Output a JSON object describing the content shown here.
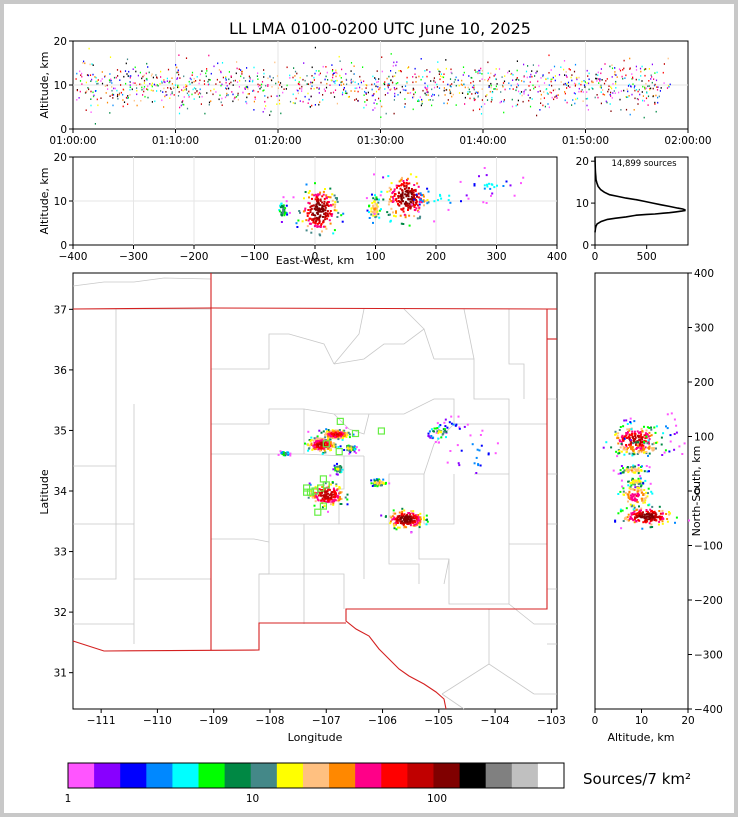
{
  "title": "LL LMA 0100-0200 UTC June 10, 2025",
  "colors": {
    "scale": [
      "#ff55ff",
      "#8800ff",
      "#0000ff",
      "#0088ff",
      "#00ffff",
      "#00ff00",
      "#008844",
      "#448888",
      "#ffff00",
      "#ffc080",
      "#ff8800",
      "#ff0088",
      "#ff0000",
      "#c00000",
      "#800000",
      "#000000",
      "#808080",
      "#c0c0c0",
      "#ffffff"
    ],
    "nldn": "#66ee44",
    "state_border": "#d42020",
    "county_border": "#c8c8c8"
  },
  "panels": {
    "time_height": {
      "ylabel": "Altitude, km",
      "yticks": [
        "0",
        "10",
        "20"
      ],
      "xticks": [
        "01:00:00",
        "01:10:00",
        "01:20:00",
        "01:30:00",
        "01:40:00",
        "01:50:00",
        "02:00:00"
      ]
    },
    "ew_height": {
      "ylabel": "Altitude, km",
      "xlabel": "East-West, km",
      "yticks": [
        "0",
        "10",
        "20"
      ],
      "xticks": [
        "−400",
        "−300",
        "−200",
        "−100",
        "0",
        "100",
        "200",
        "300",
        "400"
      ]
    },
    "histogram": {
      "sources_label": "14,899 sources",
      "yticks": [
        "0",
        "10",
        "20"
      ],
      "xticks": [
        "0",
        "500"
      ]
    },
    "plan": {
      "xlabel": "Longitude",
      "ylabel": "Latitude",
      "xticks": [
        "−111",
        "−110",
        "−109",
        "−108",
        "−107",
        "−106",
        "−105",
        "−104",
        "−103"
      ],
      "yticks": [
        "31",
        "32",
        "33",
        "34",
        "35",
        "36",
        "37"
      ]
    },
    "ns_height": {
      "ylabel": "North-South, km",
      "xlabel": "Altitude, km",
      "yticks": [
        "−400",
        "−300",
        "−200",
        "−100",
        "0",
        "100",
        "200",
        "300",
        "400"
      ],
      "xticks": [
        "0",
        "10",
        "20"
      ]
    }
  },
  "colorbar": {
    "label": "Sources/7 km²",
    "ticks": [
      "1",
      "10",
      "100"
    ]
  },
  "chart_data": [
    {
      "type": "scatter",
      "title": "LL LMA 0100-0200 UTC June 10, 2025",
      "xlabel": "",
      "ylabel": "Altitude, km",
      "xlim": [
        "01:00:00",
        "02:00:00"
      ],
      "ylim": [
        0,
        20
      ],
      "grid": true
    },
    {
      "type": "heatmap",
      "xlabel": "East-West, km",
      "ylabel": "Altitude, km",
      "xlim": [
        -400,
        400
      ],
      "ylim": [
        0,
        20
      ],
      "grid": true,
      "clusters": [
        {
          "x": -55,
          "z": 8,
          "sx": 4,
          "sz": 1.2,
          "peak": 15
        },
        {
          "x": 5,
          "z": 8,
          "sx": 14,
          "sz": 2.4,
          "peak": 220
        },
        {
          "x": 97,
          "z": 8.5,
          "sx": 5,
          "sz": 1.5,
          "peak": 40
        },
        {
          "x": 150,
          "z": 11,
          "sx": 16,
          "sz": 2.5,
          "peak": 200
        },
        {
          "x": 200,
          "z": 11,
          "sx": 30,
          "sz": 1.5,
          "peak": 6
        },
        {
          "x": 290,
          "z": 14,
          "sx": 22,
          "sz": 1.5,
          "peak": 5
        }
      ]
    },
    {
      "type": "line",
      "xlabel": "",
      "ylabel": "",
      "xlim": [
        0,
        900
      ],
      "ylim": [
        0,
        21
      ],
      "series": [
        {
          "x": [
            0,
            5,
            10,
            20,
            60,
            120,
            200,
            300,
            400,
            500,
            580,
            660,
            720,
            780,
            840,
            870,
            870,
            850,
            800,
            720,
            640,
            560,
            480,
            400,
            300,
            220,
            140,
            90,
            55,
            30,
            18,
            10,
            8,
            5,
            3,
            2,
            0
          ],
          "y": [
            3,
            4,
            4.5,
            5,
            5.6,
            6.1,
            6.4,
            6.7,
            7.1,
            7.3,
            7.4,
            7.6,
            7.7,
            7.9,
            8.1,
            8.2,
            8.4,
            8.6,
            8.8,
            9.2,
            9.6,
            10,
            10.4,
            10.8,
            11.2,
            11.6,
            12,
            12.6,
            13.2,
            14,
            14.8,
            15.6,
            16.4,
            17.2,
            18,
            19,
            21
          ]
        }
      ]
    },
    {
      "type": "heatmap",
      "xlabel": "Longitude",
      "ylabel": "Latitude",
      "xlim": [
        -111.5,
        -102.9
      ],
      "ylim": [
        30.4,
        37.6
      ],
      "clusters": [
        {
          "lon": -106.85,
          "lat": 34.95,
          "sx": 0.12,
          "sy": 0.04,
          "peak": 120
        },
        {
          "lon": -107.1,
          "lat": 34.78,
          "sx": 0.12,
          "sy": 0.06,
          "peak": 140
        },
        {
          "lon": -106.6,
          "lat": 34.72,
          "sx": 0.05,
          "sy": 0.03,
          "peak": 30
        },
        {
          "lon": -106.8,
          "lat": 34.38,
          "sx": 0.04,
          "sy": 0.04,
          "peak": 25
        },
        {
          "lon": -107.0,
          "lat": 33.95,
          "sx": 0.15,
          "sy": 0.09,
          "peak": 160
        },
        {
          "lon": -106.08,
          "lat": 34.15,
          "sx": 0.07,
          "sy": 0.03,
          "peak": 40
        },
        {
          "lon": -105.6,
          "lat": 33.55,
          "sx": 0.15,
          "sy": 0.07,
          "peak": 220
        },
        {
          "lon": -107.75,
          "lat": 34.63,
          "sx": 0.04,
          "sy": 0.02,
          "peak": 15
        },
        {
          "lon": -104.4,
          "lat": 34.6,
          "sx": 0.25,
          "sy": 0.25,
          "peak": 4
        },
        {
          "lon": -104.75,
          "lat": 35.1,
          "sx": 0.2,
          "sy": 0.12,
          "peak": 3
        },
        {
          "lon": -105.0,
          "lat": 34.98,
          "sx": 0.1,
          "sy": 0.06,
          "peak": 20
        }
      ],
      "nldn_points": [
        [
          -106.75,
          35.15
        ],
        [
          -106.48,
          34.95
        ],
        [
          -106.02,
          34.99
        ],
        [
          -107.0,
          34.78
        ],
        [
          -106.77,
          34.65
        ],
        [
          -107.35,
          34.05
        ],
        [
          -107.05,
          34.2
        ],
        [
          -107.28,
          33.98
        ],
        [
          -107.1,
          34.05
        ],
        [
          -107.35,
          33.98
        ],
        [
          -107.05,
          33.75
        ],
        [
          -107.15,
          33.65
        ],
        [
          -107.2,
          34.0
        ],
        [
          -107.0,
          34.1
        ]
      ]
    },
    {
      "type": "heatmap",
      "xlabel": "Altitude, km",
      "ylabel": "North-South, km",
      "xlim": [
        0,
        20
      ],
      "ylim": [
        -400,
        400
      ],
      "clusters": [
        {
          "z": 8.5,
          "y": 95,
          "sz": 2.5,
          "sy": 12,
          "peak": 150
        },
        {
          "z": 9,
          "y": 80,
          "sz": 3,
          "sy": 6,
          "peak": 60
        },
        {
          "z": 8,
          "y": 40,
          "sz": 1.5,
          "sy": 4,
          "peak": 40
        },
        {
          "z": 8.5,
          "y": 18,
          "sz": 1.2,
          "sy": 4,
          "peak": 30
        },
        {
          "z": 8.5,
          "y": -8,
          "sz": 1.6,
          "sy": 10,
          "peak": 80
        },
        {
          "z": 11,
          "y": -45,
          "sz": 2.5,
          "sy": 8,
          "peak": 200
        },
        {
          "z": 11,
          "y": 110,
          "sz": 3.5,
          "sy": 18,
          "peak": 8
        }
      ]
    }
  ]
}
